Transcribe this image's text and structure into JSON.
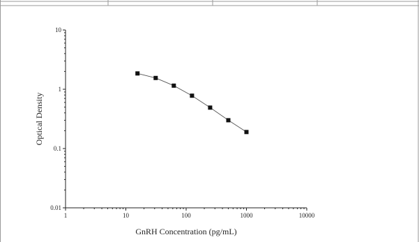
{
  "chart_data": {
    "type": "line",
    "xlabel": "GnRH Concentration (pg/mL)",
    "ylabel": "Optical Density",
    "x_scale": "log",
    "y_scale": "log",
    "xlim": [
      1,
      10000
    ],
    "ylim": [
      0.01,
      10
    ],
    "x_ticks": [
      "1",
      "10",
      "100",
      "1000",
      "10000"
    ],
    "y_ticks": [
      "0.01",
      "0.1",
      "1",
      "10"
    ],
    "grid": false,
    "legend": "none",
    "series": [
      {
        "marker": "square",
        "color": "#111111",
        "x": [
          15.6,
          31.25,
          62.5,
          125,
          250,
          500,
          1000
        ],
        "y": [
          1.85,
          1.55,
          1.15,
          0.78,
          0.49,
          0.3,
          0.19
        ]
      }
    ]
  }
}
